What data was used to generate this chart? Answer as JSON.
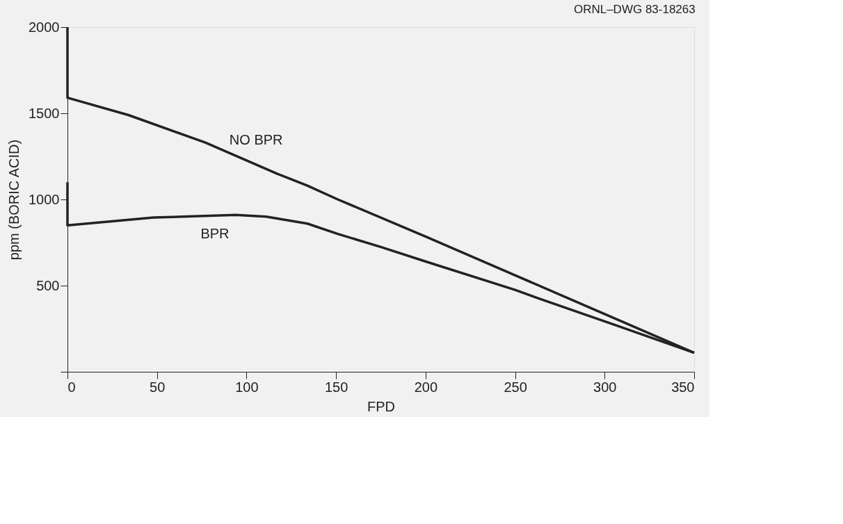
{
  "chart_data": {
    "type": "line",
    "xlabel": "FPD",
    "ylabel": "ppm (BORIC ACID)",
    "xlim": [
      0,
      350
    ],
    "xticks": [
      0,
      50,
      100,
      150,
      200,
      250,
      300,
      350
    ],
    "ylim": [
      0,
      2000
    ],
    "yticks": [
      {
        "value": 0,
        "label": null
      },
      500,
      1000,
      1500,
      2000
    ],
    "grid": false,
    "marker": "none",
    "line_style": "solid",
    "series": [
      {
        "name": "NO BPR",
        "color": "#222222",
        "x": [
          0,
          0,
          34,
          77,
          117,
          134,
          151,
          200,
          250,
          300,
          350
        ],
        "values": [
          2000,
          1590,
          1490,
          1330,
          1150,
          1080,
          1000,
          785,
          560,
          335,
          110
        ]
      },
      {
        "name": "BPR",
        "color": "#222222",
        "x": [
          0,
          0,
          48,
          94,
          111,
          134,
          151,
          175,
          200,
          250,
          262,
          305,
          350
        ],
        "values": [
          1100,
          850,
          895,
          910,
          900,
          860,
          800,
          724,
          640,
          475,
          430,
          275,
          110
        ]
      }
    ],
    "annotations": [
      "ORNL–DWG 83-18263"
    ]
  }
}
